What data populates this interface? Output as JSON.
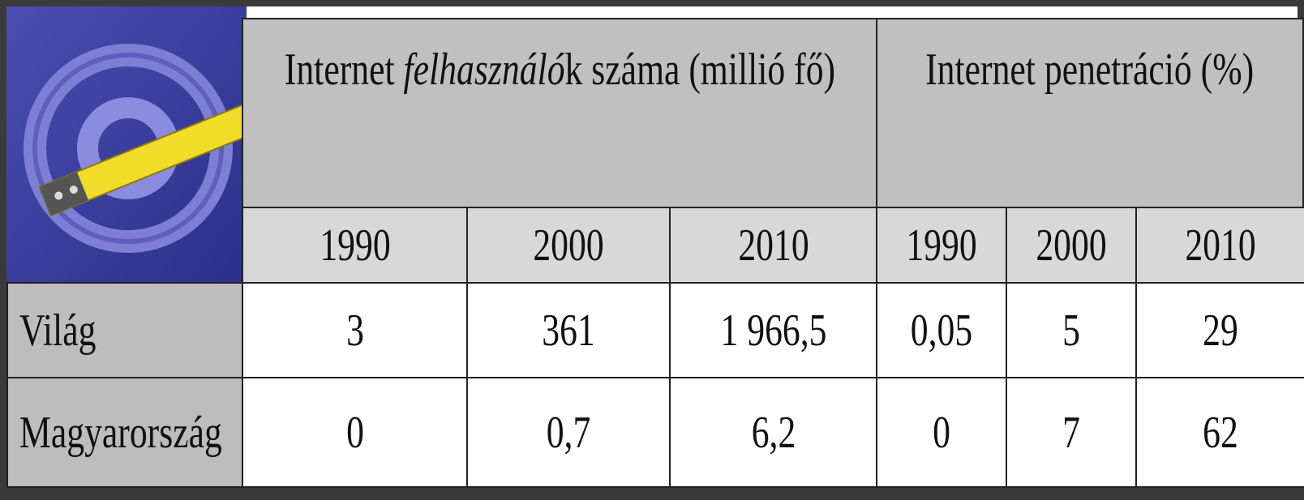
{
  "table": {
    "header": {
      "group1": [
        "Internet ",
        "felhasználó",
        "k száma (millió fő)"
      ],
      "group2": "Internet penetráció (%)",
      "years": [
        "1990",
        "2000",
        "2010",
        "1990",
        "2000",
        "2010"
      ]
    },
    "rows": [
      [
        "Világ",
        "3",
        "361",
        "1 966,5",
        "0,05",
        "5",
        "29"
      ],
      [
        "Magyarország",
        "0",
        "0,7",
        "6,2",
        "0",
        "7",
        "62"
      ]
    ]
  }
}
